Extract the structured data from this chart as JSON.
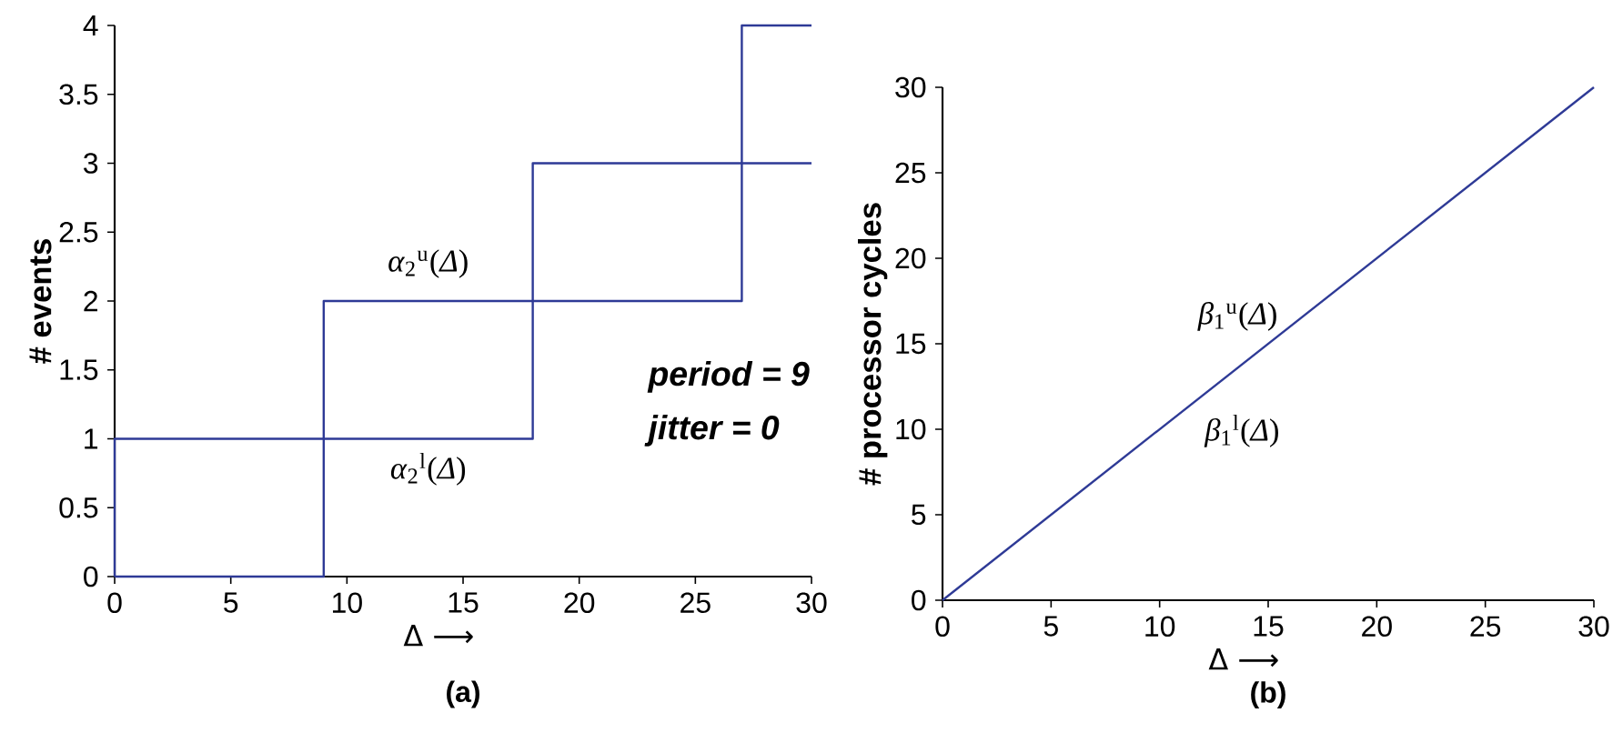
{
  "chart_data": [
    {
      "type": "step",
      "title": "(a)",
      "xlabel": "Δ ⟶",
      "ylabel": "# events",
      "xlim": [
        0,
        30
      ],
      "ylim": [
        0,
        4
      ],
      "xticks": [
        0,
        5,
        10,
        15,
        20,
        25,
        30
      ],
      "yticks": [
        0,
        0.5,
        1,
        1.5,
        2,
        2.5,
        3,
        3.5,
        4
      ],
      "series": [
        {
          "name": "*α*$_{2}$$^{u}$(*Δ*)",
          "color": "#2e3a96",
          "x": [
            0,
            0,
            9,
            18,
            27,
            30
          ],
          "values": [
            0,
            1,
            2,
            3,
            4,
            4
          ]
        },
        {
          "name": "*α*$_{2}$$^{l}$(*Δ*)",
          "color": "#2e3a96",
          "x": [
            0,
            9,
            18,
            27,
            30
          ],
          "values": [
            0,
            1,
            2,
            3,
            3
          ]
        }
      ],
      "annotations": [
        "period = 9",
        "jitter = 0"
      ]
    },
    {
      "type": "line",
      "title": "(b)",
      "xlabel": "Δ ⟶",
      "ylabel": "# processor cycles",
      "xlim": [
        0,
        30
      ],
      "ylim": [
        0,
        30
      ],
      "xticks": [
        0,
        5,
        10,
        15,
        20,
        25,
        30
      ],
      "yticks": [
        0,
        5,
        10,
        15,
        20,
        25,
        30
      ],
      "series": [
        {
          "color": "#2e3a96",
          "x": [
            0,
            30
          ],
          "values": [
            0,
            30
          ]
        }
      ],
      "annotations": [
        "*β*$_{1}$$^{u}$(*Δ*)",
        "*β*$_{1}$$^{l}$(*Δ*)"
      ]
    }
  ]
}
